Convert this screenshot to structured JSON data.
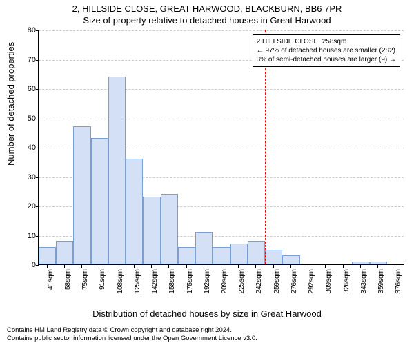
{
  "chart": {
    "type": "histogram",
    "title_main": "2, HILLSIDE CLOSE, GREAT HARWOOD, BLACKBURN, BB6 7PR",
    "title_sub": "Size of property relative to detached houses in Great Harwood",
    "y_label": "Number of detached properties",
    "x_label": "Distribution of detached houses by size in Great Harwood",
    "ylim": [
      0,
      80
    ],
    "ytick_step": 10,
    "yticks": [
      0,
      10,
      20,
      30,
      40,
      50,
      60,
      70,
      80
    ],
    "xticks": [
      "41sqm",
      "58sqm",
      "75sqm",
      "91sqm",
      "108sqm",
      "125sqm",
      "142sqm",
      "158sqm",
      "175sqm",
      "192sqm",
      "209sqm",
      "225sqm",
      "242sqm",
      "259sqm",
      "276sqm",
      "292sqm",
      "309sqm",
      "326sqm",
      "343sqm",
      "359sqm",
      "376sqm"
    ],
    "bar_color": "#d3e0f5",
    "bar_border_color": "#7a9fd4",
    "grid_color": "#cccccc",
    "background_color": "#ffffff",
    "ref_line_color": "#ff0000",
    "ref_line_index": 13,
    "values": [
      6,
      8,
      47,
      43,
      64,
      36,
      23,
      24,
      6,
      11,
      6,
      7,
      8,
      5,
      3,
      0,
      0,
      0,
      1,
      1,
      0
    ],
    "annotation": {
      "line1": "2 HILLSIDE CLOSE: 258sqm",
      "line2": "← 97% of detached houses are smaller (282)",
      "line3": "3% of semi-detached houses are larger (9) →"
    },
    "title_fontsize": 13,
    "label_fontsize": 13,
    "tick_fontsize": 11
  },
  "footer": {
    "line1": "Contains HM Land Registry data © Crown copyright and database right 2024.",
    "line2": "Contains public sector information licensed under the Open Government Licence v3.0."
  }
}
